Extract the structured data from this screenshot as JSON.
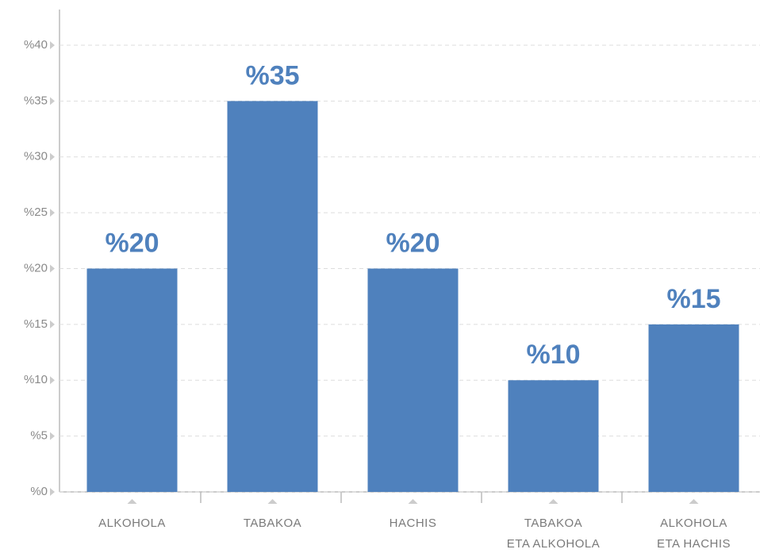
{
  "chart_data": {
    "type": "bar",
    "categories": [
      [
        "ALKOHOLA"
      ],
      [
        "TABAKOA"
      ],
      [
        "HACHIS"
      ],
      [
        "TABAKOA",
        "ETA ALKOHOLA"
      ],
      [
        "ALKOHOLA",
        "ETA HACHIS"
      ]
    ],
    "values": [
      20,
      35,
      20,
      10,
      15
    ],
    "value_labels": [
      "%20",
      "%35",
      "%20",
      "%10",
      "%15"
    ],
    "color": "#4f81bd",
    "ylim": [
      0,
      40
    ],
    "yticks": [
      {
        "value": 0,
        "label": "%0"
      },
      {
        "value": 5,
        "label": "%5"
      },
      {
        "value": 10,
        "label": "%10"
      },
      {
        "value": 15,
        "label": "%15"
      },
      {
        "value": 20,
        "label": "%20"
      },
      {
        "value": 25,
        "label": "%25"
      },
      {
        "value": 30,
        "label": "%30"
      },
      {
        "value": 35,
        "label": "%35"
      },
      {
        "value": 40,
        "label": "%40"
      }
    ],
    "grid": true
  }
}
